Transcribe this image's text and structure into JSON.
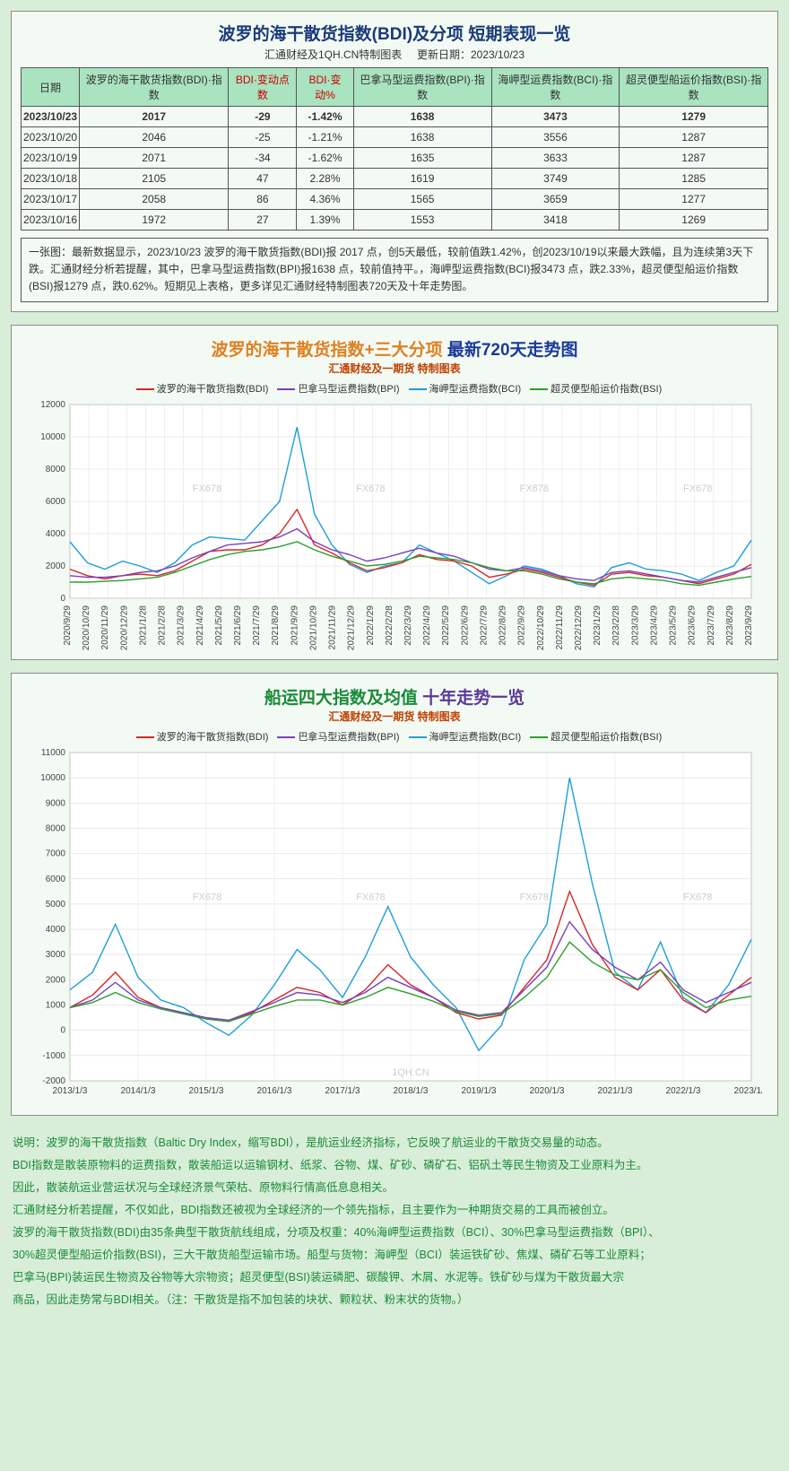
{
  "table_panel": {
    "title": "波罗的海干散货指数(BDI)及分项 短期表现一览",
    "subtitle_left": "汇通财经及1QH.CN特制图表",
    "subtitle_right": "更新日期：2023/10/23",
    "columns": [
      "日期",
      "波罗的海干散货指数(BDI)·指数",
      "BDI·变动点数",
      "BDI·变动%",
      "巴拿马型运费指数(BPI)·指数",
      "海岬型运费指数(BCI)·指数",
      "超灵便型船运价指数(BSI)·指数"
    ],
    "red_cols": [
      2,
      3
    ],
    "rows": [
      [
        "2023/10/23",
        "2017",
        "-29",
        "-1.42%",
        "1638",
        "3473",
        "1279"
      ],
      [
        "2023/10/20",
        "2046",
        "-25",
        "-1.21%",
        "1638",
        "3556",
        "1287"
      ],
      [
        "2023/10/19",
        "2071",
        "-34",
        "-1.62%",
        "1635",
        "3633",
        "1287"
      ],
      [
        "2023/10/18",
        "2105",
        "47",
        "2.28%",
        "1619",
        "3749",
        "1285"
      ],
      [
        "2023/10/17",
        "2058",
        "86",
        "4.36%",
        "1565",
        "3659",
        "1277"
      ],
      [
        "2023/10/16",
        "1972",
        "27",
        "1.39%",
        "1553",
        "3418",
        "1269"
      ]
    ],
    "summary": "一张图：最新数据显示，2023/10/23 波罗的海干散货指数(BDI)报 2017 点，创5天最低，较前值跌1.42%，创2023/10/19以来最大跌幅，且为连续第3天下跌。汇通财经分析若提醒，其中，巴拿马型运费指数(BPI)报1638 点，较前值持平。，海岬型运费指数(BCI)报3473 点，跌2.33%，超灵便型船运价指数(BSI)报1279 点，跌0.62%。短期见上表格，更多详见汇通财经特制图表720天及十年走势图。"
  },
  "chart720": {
    "title_a": "波罗的海干散货指数+三大分项 ",
    "title_b": "最新720天走势图",
    "subtitle": "汇通财经及一期货 特制图表",
    "legend": [
      {
        "label": "波罗的海干散货指数(BDI)",
        "color": "#d62728"
      },
      {
        "label": "巴拿马型运费指数(BPI)",
        "color": "#7a3fbf"
      },
      {
        "label": "海岬型运费指数(BCI)",
        "color": "#1f9ed8"
      },
      {
        "label": "超灵便型船运价指数(BSI)",
        "color": "#2ca02c"
      }
    ],
    "y": {
      "min": 0,
      "max": 12000,
      "step": 2000
    },
    "x_labels": [
      "2020/9/29",
      "2020/10/29",
      "2020/11/29",
      "2020/12/29",
      "2021/1/28",
      "2021/2/28",
      "2021/3/29",
      "2021/4/29",
      "2021/5/29",
      "2021/6/29",
      "2021/7/29",
      "2021/8/29",
      "2021/9/29",
      "2021/10/29",
      "2021/11/29",
      "2021/12/29",
      "2022/1/29",
      "2022/2/28",
      "2022/3/29",
      "2022/4/29",
      "2022/5/29",
      "2022/6/29",
      "2022/7/29",
      "2022/8/29",
      "2022/9/29",
      "2022/10/29",
      "2022/11/29",
      "2022/12/29",
      "2023/1/29",
      "2023/2/28",
      "2023/3/29",
      "2023/4/29",
      "2023/5/29",
      "2023/6/29",
      "2023/7/29",
      "2023/8/29",
      "2023/9/29"
    ],
    "series": {
      "bci": [
        3500,
        2200,
        1800,
        2300,
        2000,
        1600,
        2200,
        3300,
        3800,
        3700,
        3600,
        4800,
        6000,
        10600,
        5200,
        3300,
        2100,
        1600,
        2000,
        2200,
        3300,
        2800,
        2300,
        1600,
        900,
        1400,
        2000,
        1800,
        1400,
        900,
        700,
        1900,
        2200,
        1800,
        1700,
        1500,
        1100,
        1600,
        2000,
        3600
      ],
      "bdi": [
        1800,
        1400,
        1200,
        1400,
        1500,
        1400,
        1700,
        2300,
        2900,
        3000,
        3000,
        3300,
        4000,
        5500,
        3300,
        2800,
        2200,
        1700,
        1900,
        2200,
        2700,
        2400,
        2300,
        2000,
        1300,
        1500,
        1800,
        1600,
        1300,
        1000,
        800,
        1500,
        1600,
        1400,
        1300,
        1100,
        900,
        1200,
        1500,
        2100
      ],
      "bpi": [
        1400,
        1300,
        1300,
        1400,
        1600,
        1700,
        2000,
        2500,
        2900,
        3300,
        3400,
        3500,
        3800,
        4300,
        3500,
        3000,
        2700,
        2300,
        2500,
        2800,
        3100,
        2800,
        2600,
        2200,
        1800,
        1700,
        1900,
        1700,
        1400,
        1200,
        1100,
        1600,
        1700,
        1500,
        1300,
        1100,
        1000,
        1300,
        1600,
        1900
      ],
      "bsi": [
        1000,
        1000,
        1050,
        1100,
        1200,
        1300,
        1600,
        2000,
        2400,
        2700,
        2900,
        3000,
        3200,
        3500,
        3000,
        2600,
        2300,
        2000,
        2100,
        2300,
        2600,
        2500,
        2400,
        2200,
        1900,
        1700,
        1700,
        1500,
        1200,
        1000,
        900,
        1200,
        1300,
        1200,
        1100,
        900,
        800,
        1000,
        1200,
        1350
      ]
    },
    "grid_color": "#d9d9d9",
    "bg": "#ffffff",
    "watermark": "FX678"
  },
  "chart10y": {
    "title_a": "船运四大指数及均值 ",
    "title_b": "十年走势一览",
    "subtitle": "汇通财经及一期货 特制图表",
    "legend": [
      {
        "label": "波罗的海干散货指数(BDI)",
        "color": "#d62728"
      },
      {
        "label": "巴拿马型运费指数(BPI)",
        "color": "#7a3fbf"
      },
      {
        "label": "海岬型运费指数(BCI)",
        "color": "#1f9ed8"
      },
      {
        "label": "超灵便型船运价指数(BSI)",
        "color": "#2ca02c"
      }
    ],
    "y": {
      "min": -2000,
      "max": 11000,
      "step": 1000
    },
    "x_labels": [
      "2013/1/3",
      "2014/1/3",
      "2015/1/3",
      "2016/1/3",
      "2017/1/3",
      "2018/1/3",
      "2019/1/3",
      "2020/1/3",
      "2021/1/3",
      "2022/1/3",
      "2023/1/3"
    ],
    "series": {
      "bci": [
        1600,
        2300,
        4200,
        2100,
        1200,
        900,
        300,
        -200,
        600,
        1800,
        3200,
        2400,
        1300,
        2900,
        4900,
        2900,
        1800,
        900,
        -800,
        200,
        2800,
        4200,
        10000,
        5800,
        2300,
        1600,
        3500,
        1300,
        700,
        1800,
        3600
      ],
      "bdi": [
        900,
        1400,
        2300,
        1300,
        900,
        700,
        450,
        350,
        700,
        1200,
        1700,
        1500,
        1000,
        1600,
        2600,
        1800,
        1300,
        700,
        450,
        600,
        1700,
        2800,
        5500,
        3400,
        2100,
        1600,
        2400,
        1200,
        700,
        1400,
        2100
      ],
      "bpi": [
        900,
        1200,
        1900,
        1200,
        900,
        700,
        500,
        400,
        750,
        1100,
        1500,
        1400,
        1100,
        1500,
        2100,
        1700,
        1300,
        800,
        600,
        700,
        1600,
        2500,
        4300,
        3200,
        2500,
        2000,
        2700,
        1600,
        1100,
        1500,
        1900
      ],
      "bsi": [
        900,
        1100,
        1500,
        1100,
        850,
        650,
        450,
        350,
        650,
        950,
        1200,
        1200,
        1000,
        1300,
        1700,
        1450,
        1150,
        750,
        550,
        650,
        1300,
        2100,
        3500,
        2700,
        2200,
        2000,
        2400,
        1500,
        900,
        1200,
        1350
      ]
    },
    "grid_color": "#d9d9d9",
    "bg": "#ffffff",
    "watermark": "FX678",
    "watermark2": "1QH.CN"
  },
  "footer": [
    "说明：波罗的海干散货指数（Baltic Dry Index，缩写BDI），是航运业经济指标，它反映了航运业的干散货交易量的动态。",
    "BDI指数是散装原物料的运费指数，散装船运以运输钢材、纸浆、谷物、煤、矿砂、磷矿石、铝矾土等民生物资及工业原料为主。",
    "因此，散装航运业营运状况与全球经济景气荣枯、原物料行情高低息息相关。",
    "汇通财经分析若提醒，不仅如此，BDI指数还被视为全球经济的一个领先指标，且主要作为一种期货交易的工具而被创立。",
    "波罗的海干散货指数(BDI)由35条典型干散货航线组成，分项及权重：40%海岬型运费指数（BCI）、30%巴拿马型运费指数（BPI）、",
    "30%超灵便型船运价指数(BSI)，三大干散货船型运输市场。船型与货物：海岬型（BCI）装运铁矿砂、焦煤、磷矿石等工业原料；",
    "巴拿马(BPI)装运民生物资及谷物等大宗物资；超灵便型(BSI)装运磷肥、碳酸钾、木屑、水泥等。铁矿砂与煤为干散货最大宗",
    "商品，因此走势常与BDI相关。（注：干散货是指不加包装的块状、颗粒状、粉末状的货物。）"
  ]
}
